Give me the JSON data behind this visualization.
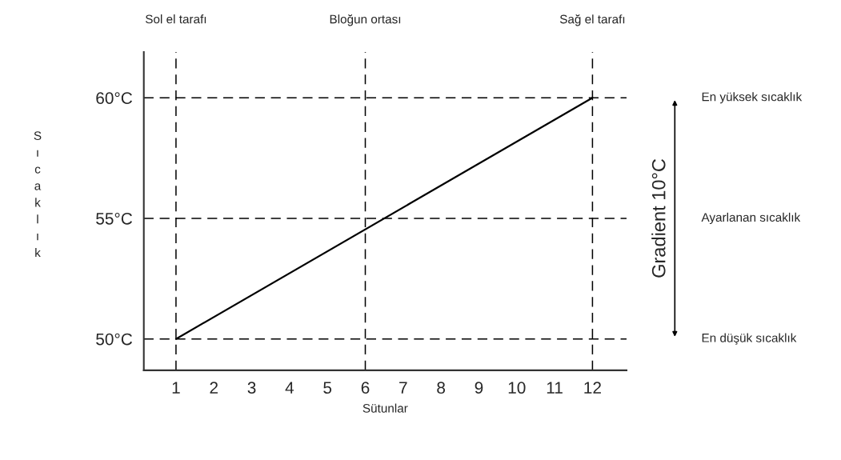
{
  "chart_data": {
    "type": "line",
    "xlabel": "Sütunlar",
    "ylabel": "Sıcaklık",
    "x": [
      1,
      12
    ],
    "series": [
      {
        "color": "#000000",
        "values": [
          50,
          60
        ]
      }
    ],
    "xlim": [
      0.15,
      12.9
    ],
    "ylim": [
      48.7,
      61.9
    ],
    "xticks": [
      1,
      2,
      3,
      4,
      5,
      6,
      7,
      8,
      9,
      10,
      11,
      12
    ],
    "yticks": [
      {
        "value": 50,
        "label": "50°C"
      },
      {
        "value": 55,
        "label": "55°C"
      },
      {
        "value": 60,
        "label": "60°C"
      }
    ],
    "ref_lines": [
      {
        "axis": "x",
        "value": 1,
        "label": "Sol el tarafı",
        "line_style": "dashed",
        "color": "#000000"
      },
      {
        "axis": "x",
        "value": 6,
        "label": "Bloğun ortası",
        "line_style": "dashed",
        "color": "#000000"
      },
      {
        "axis": "x",
        "value": 12,
        "label": "Sağ el tarafı",
        "line_style": "dashed",
        "color": "#000000"
      },
      {
        "axis": "y",
        "value": 60,
        "line_style": "dashed",
        "color": "#000000"
      },
      {
        "axis": "y",
        "value": 55,
        "line_style": "dashed",
        "color": "#000000"
      },
      {
        "axis": "y",
        "value": 50,
        "line_style": "dashed",
        "color": "#000000"
      }
    ],
    "annotations": [
      "Gradient 10°C",
      "En yüksek sıcaklık",
      "Ayarlanan sıcaklık",
      "En düşük sıcaklık"
    ],
    "grid": false,
    "legend": false,
    "marker": "none",
    "line_style": "solid"
  }
}
